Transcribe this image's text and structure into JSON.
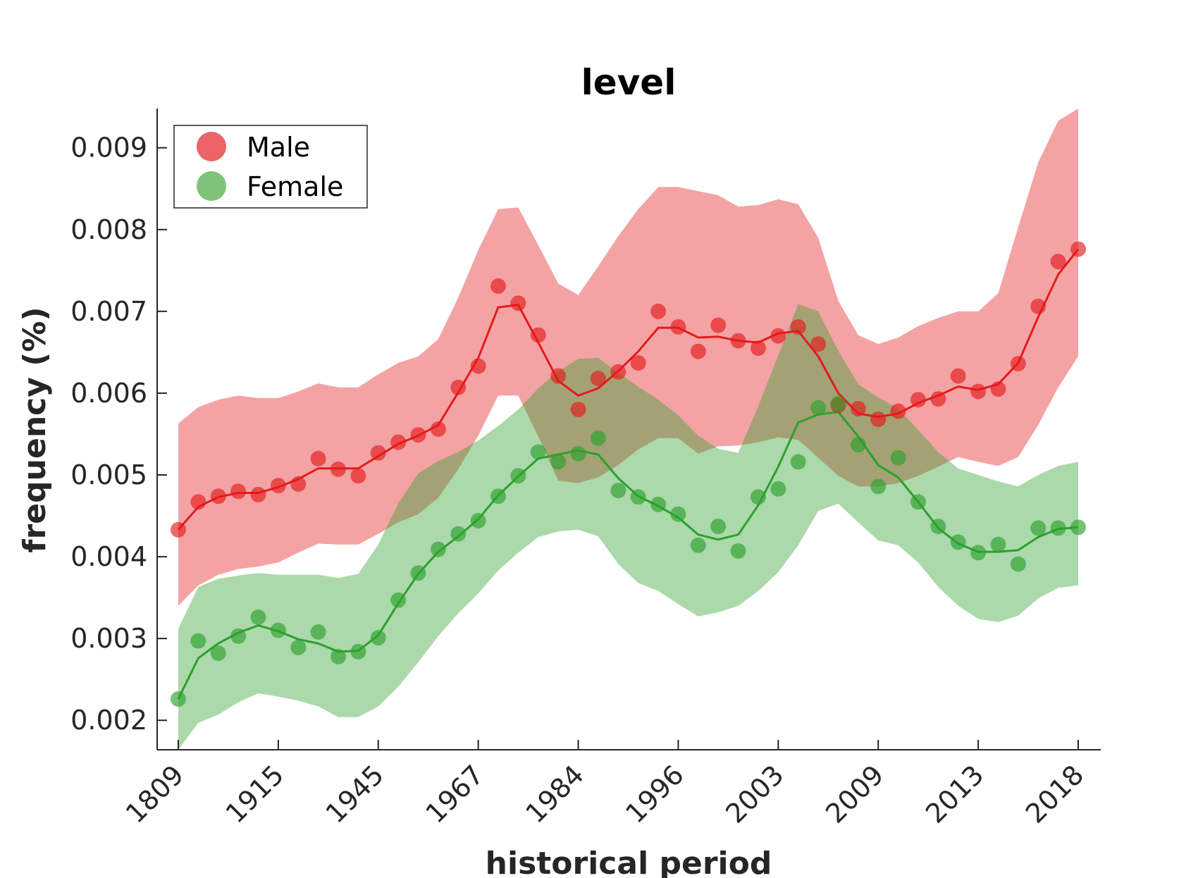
{
  "chart_data": {
    "type": "line",
    "title": "level",
    "xlabel": "historical period",
    "ylabel": "frequency (%)",
    "x_tick_labels": [
      "1809",
      "1915",
      "1945",
      "1967",
      "1984",
      "1996",
      "2003",
      "2009",
      "2013",
      "2018"
    ],
    "x_tick_positions": [
      1,
      6,
      11,
      16,
      21,
      26,
      31,
      36,
      41,
      46
    ],
    "xlim": [
      0,
      47
    ],
    "ylim": [
      0.00164,
      0.00948
    ],
    "y_ticks": [
      0.002,
      0.003,
      0.004,
      0.005,
      0.006,
      0.007,
      0.008,
      0.009
    ],
    "y_tick_labels": [
      "0.002",
      "0.003",
      "0.004",
      "0.005",
      "0.006",
      "0.007",
      "0.008",
      "0.009"
    ],
    "grid": false,
    "legend_position": "top-left",
    "series": [
      {
        "name": "Male",
        "color": "#e41a1c",
        "band_color": "#f4a3a4",
        "points": [
          0.00433,
          0.00467,
          0.00474,
          0.0048,
          0.00476,
          0.00487,
          0.00489,
          0.0052,
          0.00507,
          0.00499,
          0.00527,
          0.0054,
          0.00549,
          0.00556,
          0.00607,
          0.00633,
          0.00731,
          0.0071,
          0.00671,
          0.00621,
          0.0058,
          0.00618,
          0.00626,
          0.00637,
          0.007,
          0.00681,
          0.00651,
          0.00683,
          0.00664,
          0.00655,
          0.0067,
          0.00681,
          0.0066,
          0.00585,
          0.00581,
          0.00568,
          0.00578,
          0.00592,
          0.00593,
          0.00621,
          0.00602,
          0.00605,
          0.00636,
          0.00706,
          0.00761,
          0.00776
        ],
        "trend": [
          0.00433,
          0.00461,
          0.00473,
          0.00478,
          0.00478,
          0.00485,
          0.00495,
          0.00508,
          0.00508,
          0.00508,
          0.00523,
          0.00538,
          0.00548,
          0.00561,
          0.00601,
          0.00643,
          0.00705,
          0.00708,
          0.00662,
          0.00615,
          0.00597,
          0.00606,
          0.00627,
          0.00651,
          0.0068,
          0.0068,
          0.00668,
          0.00669,
          0.00664,
          0.00662,
          0.00673,
          0.00676,
          0.00645,
          0.006,
          0.00575,
          0.00571,
          0.00575,
          0.00588,
          0.00597,
          0.00608,
          0.00604,
          0.00611,
          0.00637,
          0.00693,
          0.00745,
          0.00776
        ],
        "upper": [
          0.00563,
          0.00583,
          0.00592,
          0.00597,
          0.00594,
          0.00594,
          0.00602,
          0.00612,
          0.00607,
          0.00607,
          0.00623,
          0.00637,
          0.00645,
          0.00666,
          0.00717,
          0.00775,
          0.00825,
          0.00827,
          0.00781,
          0.00734,
          0.0072,
          0.00755,
          0.00792,
          0.00825,
          0.00852,
          0.00852,
          0.00847,
          0.00842,
          0.00828,
          0.0083,
          0.00837,
          0.00831,
          0.0079,
          0.00713,
          0.00671,
          0.0066,
          0.00668,
          0.00682,
          0.00692,
          0.007,
          0.007,
          0.00722,
          0.00803,
          0.00882,
          0.00933,
          0.00948
        ],
        "lower": [
          0.0034,
          0.00365,
          0.00378,
          0.00385,
          0.00388,
          0.00393,
          0.00405,
          0.00416,
          0.00415,
          0.00415,
          0.00428,
          0.00442,
          0.00452,
          0.00472,
          0.00507,
          0.00548,
          0.00597,
          0.00597,
          0.00547,
          0.00493,
          0.0049,
          0.00497,
          0.00512,
          0.00531,
          0.00545,
          0.00545,
          0.00526,
          0.00535,
          0.00536,
          0.0054,
          0.00546,
          0.00543,
          0.00521,
          0.00499,
          0.00486,
          0.00486,
          0.0049,
          0.00499,
          0.0051,
          0.00522,
          0.00516,
          0.00511,
          0.00522,
          0.00561,
          0.00607,
          0.00645
        ]
      },
      {
        "name": "Female",
        "color": "#2ca02c",
        "band_color": "#addcaa",
        "points": [
          0.00226,
          0.00297,
          0.00282,
          0.00303,
          0.00326,
          0.0031,
          0.00289,
          0.00308,
          0.00278,
          0.00284,
          0.00301,
          0.00347,
          0.0038,
          0.00409,
          0.00428,
          0.00444,
          0.00474,
          0.00499,
          0.00528,
          0.00516,
          0.00526,
          0.00545,
          0.00481,
          0.00473,
          0.00464,
          0.00452,
          0.00414,
          0.00437,
          0.00407,
          0.00473,
          0.00483,
          0.00516,
          0.00582,
          0.00587,
          0.00537,
          0.00486,
          0.00521,
          0.00467,
          0.00437,
          0.00418,
          0.00405,
          0.00415,
          0.00391,
          0.00435,
          0.00435,
          0.00436
        ],
        "trend": [
          0.00226,
          0.00276,
          0.00294,
          0.00307,
          0.00316,
          0.00309,
          0.00299,
          0.00294,
          0.00284,
          0.00285,
          0.00304,
          0.00343,
          0.00379,
          0.00406,
          0.00425,
          0.00446,
          0.00475,
          0.00498,
          0.0052,
          0.00525,
          0.0053,
          0.00525,
          0.00496,
          0.00474,
          0.00462,
          0.00448,
          0.00427,
          0.00421,
          0.00427,
          0.00463,
          0.0051,
          0.00564,
          0.00574,
          0.00577,
          0.00547,
          0.00512,
          0.00497,
          0.00467,
          0.00435,
          0.00416,
          0.00406,
          0.00406,
          0.00408,
          0.00424,
          0.00434,
          0.00436
        ],
        "upper": [
          0.00312,
          0.00363,
          0.00373,
          0.00377,
          0.0038,
          0.00378,
          0.00378,
          0.00378,
          0.00374,
          0.00379,
          0.00415,
          0.00465,
          0.00502,
          0.00517,
          0.00528,
          0.00542,
          0.0056,
          0.0058,
          0.00606,
          0.00627,
          0.00642,
          0.00643,
          0.00625,
          0.00608,
          0.00592,
          0.00573,
          0.00548,
          0.00532,
          0.00527,
          0.00584,
          0.00646,
          0.00709,
          0.007,
          0.00652,
          0.00611,
          0.00595,
          0.00581,
          0.00555,
          0.00528,
          0.00508,
          0.005,
          0.00492,
          0.00486,
          0.005,
          0.00511,
          0.00516
        ],
        "lower": [
          0.00164,
          0.00197,
          0.00207,
          0.00222,
          0.00233,
          0.00229,
          0.00224,
          0.00217,
          0.00204,
          0.00204,
          0.00217,
          0.00241,
          0.00271,
          0.00303,
          0.00331,
          0.00355,
          0.00383,
          0.00405,
          0.00424,
          0.00431,
          0.00433,
          0.00425,
          0.00391,
          0.00368,
          0.00358,
          0.00342,
          0.00327,
          0.00332,
          0.0034,
          0.00358,
          0.00381,
          0.00414,
          0.00456,
          0.00465,
          0.00442,
          0.0042,
          0.00414,
          0.00393,
          0.00363,
          0.0034,
          0.00324,
          0.0032,
          0.00328,
          0.00349,
          0.00362,
          0.00365
        ]
      }
    ]
  }
}
